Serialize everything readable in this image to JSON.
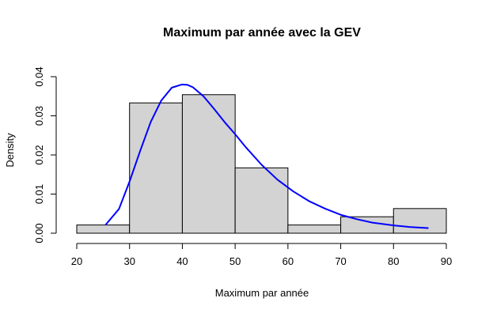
{
  "chart_data": {
    "type": "bar",
    "title": "Maximum par année avec la GEV",
    "xlabel": "Maximum par année",
    "ylabel": "Density",
    "xlim": [
      20,
      90
    ],
    "ylim": [
      0,
      0.04
    ],
    "x_ticks": [
      "20",
      "30",
      "40",
      "50",
      "60",
      "70",
      "80",
      "90"
    ],
    "y_ticks": [
      "0.00",
      "0.01",
      "0.02",
      "0.03",
      "0.04"
    ],
    "histogram": {
      "bins": [
        {
          "x0": 20,
          "x1": 30,
          "density": 0.0021
        },
        {
          "x0": 30,
          "x1": 40,
          "density": 0.0333
        },
        {
          "x0": 40,
          "x1": 50,
          "density": 0.0354
        },
        {
          "x0": 50,
          "x1": 60,
          "density": 0.0167
        },
        {
          "x0": 60,
          "x1": 70,
          "density": 0.0021
        },
        {
          "x0": 70,
          "x1": 80,
          "density": 0.0042
        },
        {
          "x0": 80,
          "x1": 90,
          "density": 0.0063
        }
      ],
      "fill": "#d3d3d3",
      "stroke": "#000000"
    },
    "density_curve": {
      "color": "#0000ff",
      "x": [
        25.5,
        28,
        30,
        32,
        34,
        36,
        38,
        39.9,
        41,
        42,
        44,
        46,
        48,
        50,
        52,
        55,
        58,
        61,
        64,
        67,
        70,
        73,
        76,
        80,
        83,
        86.5
      ],
      "y": [
        0.0022,
        0.0062,
        0.0132,
        0.021,
        0.0284,
        0.0339,
        0.0372,
        0.038,
        0.0379,
        0.0373,
        0.035,
        0.0318,
        0.0284,
        0.0253,
        0.022,
        0.0175,
        0.0137,
        0.0107,
        0.0082,
        0.0063,
        0.0047,
        0.0036,
        0.0027,
        0.002,
        0.0016,
        0.0013
      ]
    },
    "grid": false,
    "legend": "none"
  }
}
